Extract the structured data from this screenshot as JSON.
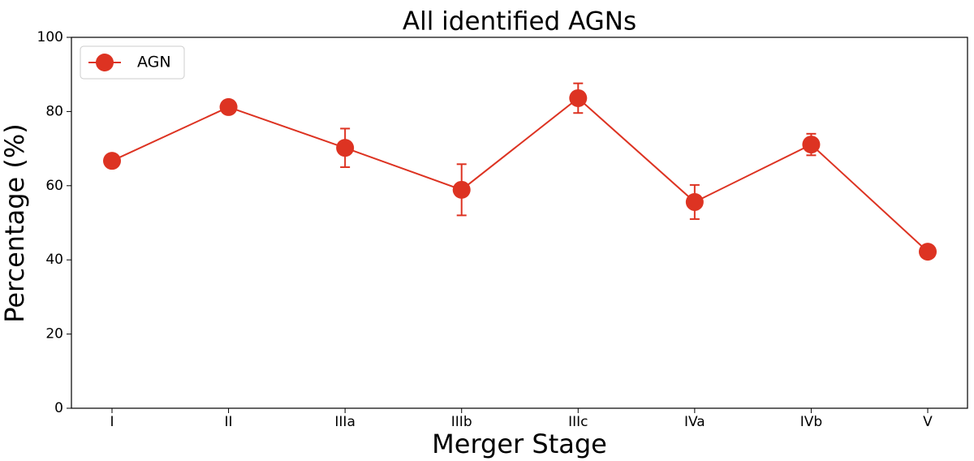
{
  "chart_data": {
    "type": "line",
    "title": "All identified AGNs",
    "x_label": "Merger Stage",
    "y_label": "Percentage (%)",
    "categories": [
      "I",
      "II",
      "IIIa",
      "IIIb",
      "IIIc",
      "IVa",
      "IVb",
      "V"
    ],
    "series": [
      {
        "name": "AGN",
        "color": "#dd3322",
        "values": [
          66.7,
          81.2,
          70.2,
          58.9,
          83.6,
          55.6,
          71.1,
          42.2
        ],
        "errors": [
          0,
          1.8,
          5.2,
          6.9,
          4.0,
          4.6,
          2.9,
          0
        ]
      }
    ],
    "ylim": [
      0,
      100
    ],
    "yticks": [
      0,
      20,
      40,
      60,
      80,
      100
    ],
    "legend": "upper left"
  }
}
